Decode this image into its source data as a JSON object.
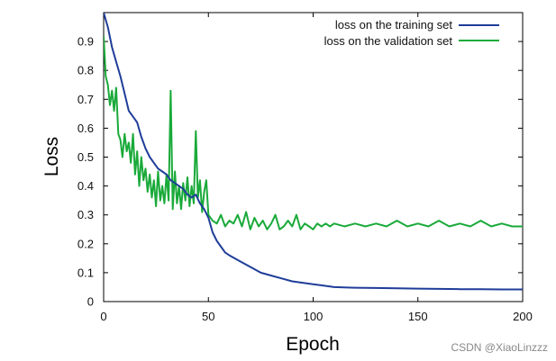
{
  "chart_data": {
    "type": "line",
    "title": "",
    "xlabel": "Epoch",
    "ylabel": "Loss",
    "xlim": [
      0,
      200
    ],
    "ylim": [
      0,
      1.0
    ],
    "xticks": [
      "0",
      "50",
      "100",
      "150",
      "200"
    ],
    "yticks": [
      "0",
      "0.1",
      "0.2",
      "0.3",
      "0.4",
      "0.5",
      "0.6",
      "0.7",
      "0.8",
      "0.9"
    ],
    "grid": false,
    "legend_position": "top-right",
    "series": [
      {
        "name": "loss on the training set",
        "color": "#1f3d99",
        "x": [
          0,
          2,
          4,
          6,
          8,
          10,
          12,
          14,
          16,
          18,
          20,
          22,
          24,
          26,
          28,
          30,
          32,
          34,
          36,
          38,
          40,
          42,
          44,
          46,
          48,
          50,
          52,
          54,
          56,
          58,
          60,
          65,
          70,
          75,
          80,
          85,
          90,
          95,
          100,
          105,
          110,
          120,
          130,
          140,
          150,
          160,
          170,
          180,
          190,
          200
        ],
        "y": [
          1.0,
          0.95,
          0.88,
          0.83,
          0.78,
          0.72,
          0.66,
          0.64,
          0.62,
          0.57,
          0.53,
          0.5,
          0.48,
          0.46,
          0.45,
          0.44,
          0.42,
          0.41,
          0.4,
          0.39,
          0.37,
          0.36,
          0.37,
          0.34,
          0.32,
          0.29,
          0.24,
          0.21,
          0.19,
          0.17,
          0.16,
          0.14,
          0.12,
          0.1,
          0.09,
          0.08,
          0.07,
          0.065,
          0.06,
          0.055,
          0.05,
          0.048,
          0.047,
          0.046,
          0.045,
          0.044,
          0.043,
          0.043,
          0.042,
          0.042
        ]
      },
      {
        "name": "loss on the validation set",
        "color": "#1aaa3a",
        "x": [
          0,
          1,
          2,
          3,
          4,
          5,
          6,
          7,
          8,
          9,
          10,
          11,
          12,
          13,
          14,
          15,
          16,
          17,
          18,
          19,
          20,
          21,
          22,
          23,
          24,
          25,
          26,
          27,
          28,
          29,
          30,
          31,
          32,
          33,
          34,
          35,
          36,
          37,
          38,
          39,
          40,
          41,
          42,
          43,
          44,
          45,
          46,
          47,
          48,
          49,
          50,
          52,
          54,
          56,
          58,
          60,
          62,
          64,
          66,
          68,
          70,
          72,
          74,
          76,
          78,
          80,
          82,
          84,
          86,
          88,
          90,
          92,
          94,
          96,
          98,
          100,
          102,
          104,
          106,
          108,
          110,
          115,
          120,
          125,
          130,
          135,
          140,
          145,
          150,
          155,
          160,
          165,
          170,
          175,
          180,
          185,
          190,
          195,
          200
        ],
        "y": [
          0.92,
          0.78,
          0.75,
          0.68,
          0.73,
          0.66,
          0.74,
          0.58,
          0.56,
          0.5,
          0.58,
          0.52,
          0.55,
          0.48,
          0.58,
          0.44,
          0.52,
          0.4,
          0.5,
          0.42,
          0.46,
          0.38,
          0.44,
          0.36,
          0.42,
          0.33,
          0.45,
          0.35,
          0.4,
          0.34,
          0.44,
          0.35,
          0.73,
          0.32,
          0.45,
          0.34,
          0.4,
          0.32,
          0.41,
          0.35,
          0.43,
          0.33,
          0.4,
          0.34,
          0.59,
          0.36,
          0.42,
          0.31,
          0.38,
          0.42,
          0.3,
          0.28,
          0.27,
          0.3,
          0.26,
          0.28,
          0.27,
          0.3,
          0.26,
          0.31,
          0.25,
          0.29,
          0.26,
          0.28,
          0.25,
          0.27,
          0.3,
          0.25,
          0.26,
          0.28,
          0.26,
          0.3,
          0.25,
          0.27,
          0.26,
          0.25,
          0.27,
          0.26,
          0.27,
          0.26,
          0.27,
          0.26,
          0.27,
          0.26,
          0.27,
          0.26,
          0.28,
          0.26,
          0.27,
          0.26,
          0.28,
          0.26,
          0.27,
          0.26,
          0.28,
          0.26,
          0.27,
          0.26,
          0.26
        ]
      }
    ]
  },
  "watermark": "CSDN @XiaoLinzzz"
}
